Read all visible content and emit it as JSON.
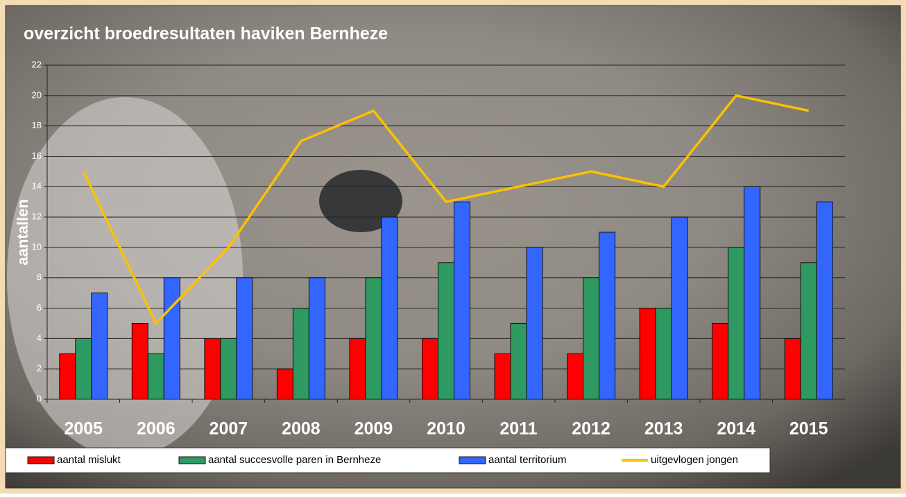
{
  "chart_data": {
    "type": "bar",
    "title": "overzicht broedresultaten haviken Bernheze",
    "y_label": "aantallen",
    "categories": [
      "2005",
      "2006",
      "2007",
      "2008",
      "2009",
      "2010",
      "2011",
      "2012",
      "2013",
      "2014",
      "2015"
    ],
    "series": [
      {
        "name": "aantal mislukt",
        "color": "#ff0000",
        "values": [
          3,
          5,
          4,
          2,
          4,
          4,
          3,
          3,
          6,
          5,
          4
        ]
      },
      {
        "name": "aantal succesvolle paren in Bernheze",
        "color": "#2e9960",
        "values": [
          4,
          3,
          4,
          6,
          8,
          9,
          5,
          8,
          6,
          10,
          9
        ]
      },
      {
        "name": "aantal territorium",
        "color": "#3366ff",
        "values": [
          7,
          8,
          8,
          8,
          12,
          13,
          10,
          11,
          12,
          14,
          13
        ]
      },
      {
        "name": "uitgevlogen jongen",
        "color": "#ffc000",
        "type": "line",
        "values": [
          15,
          5,
          10,
          17,
          19,
          13,
          14,
          15,
          14,
          20,
          19
        ]
      }
    ],
    "ylim": [
      0,
      22
    ],
    "yticks": [
      0,
      2,
      4,
      6,
      8,
      10,
      12,
      14,
      16,
      18,
      20,
      22
    ],
    "grid": true
  }
}
